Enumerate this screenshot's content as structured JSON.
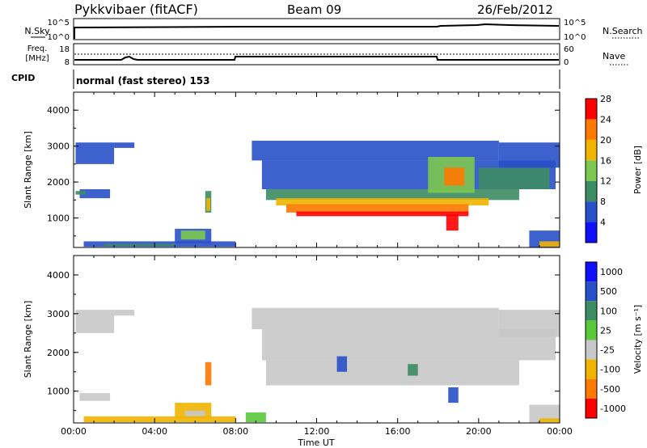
{
  "header": {
    "station": "Pykkvibaer (fitACF)",
    "beam": "Beam 09",
    "date": "26/Feb/2012"
  },
  "top_panels": {
    "nsky_label": "N.Sky",
    "nsky_ticks": [
      "10^5",
      "10^0"
    ],
    "nsearch_label": "N.Search",
    "nsearch_ticks": [
      "10^5",
      "10^0"
    ],
    "freq_label_1": "Freq.",
    "freq_label_2": "[MHz]",
    "freq_ticks": [
      "18",
      "8"
    ],
    "nave_label": "Nave",
    "nave_ticks": [
      "60",
      "0"
    ],
    "cpid_label": "CPID",
    "cpid_text": "normal (fast stereo) 153"
  },
  "x_axis": {
    "label": "Time UT",
    "ticks": [
      "00:00",
      "04:00",
      "08:00",
      "12:00",
      "16:00",
      "20:00",
      "00:00"
    ]
  },
  "chart_data": [
    {
      "type": "heatmap",
      "name": "power",
      "ylabel": "Slant Range [km]",
      "yticks": [
        "1000",
        "2000",
        "3000",
        "4000"
      ],
      "ylim": [
        180,
        4500
      ],
      "xlim": [
        0,
        24
      ],
      "colorbar_label": "Power [dB]",
      "colorbar_ticks": [
        "4",
        "8",
        "12",
        "16",
        "20",
        "24",
        "28"
      ],
      "colors": [
        "#1010ff",
        "#2850c8",
        "#3c8c64",
        "#7dc850",
        "#f0b400",
        "#ff7800",
        "#ff0000"
      ],
      "regions": [
        {
          "x0": 0.1,
          "x1": 2.0,
          "y0": 2500,
          "y1": 3100,
          "color": "#2850c8"
        },
        {
          "x0": 2.0,
          "x1": 3.0,
          "y0": 2950,
          "y1": 3100,
          "color": "#2850c8"
        },
        {
          "x0": 0.3,
          "x1": 1.8,
          "y0": 1550,
          "y1": 1800,
          "color": "#2850c8"
        },
        {
          "x0": 0.1,
          "x1": 0.6,
          "y0": 1650,
          "y1": 1750,
          "color": "#3c8c64"
        },
        {
          "x0": 5.0,
          "x1": 6.8,
          "y0": 300,
          "y1": 700,
          "color": "#2850c8"
        },
        {
          "x0": 5.3,
          "x1": 6.5,
          "y0": 400,
          "y1": 650,
          "color": "#7dc850"
        },
        {
          "x0": 6.5,
          "x1": 6.8,
          "y0": 1150,
          "y1": 1750,
          "color": "#3c8c64"
        },
        {
          "x0": 6.55,
          "x1": 6.75,
          "y0": 1200,
          "y1": 1550,
          "color": "#f0b400"
        },
        {
          "x0": 0.5,
          "x1": 8.0,
          "y0": 200,
          "y1": 350,
          "color": "#2850c8"
        },
        {
          "x0": 1.5,
          "x1": 5.0,
          "y0": 220,
          "y1": 280,
          "color": "#3c8c64"
        },
        {
          "x0": 8.8,
          "x1": 21.0,
          "y0": 2600,
          "y1": 3150,
          "color": "#2850c8"
        },
        {
          "x0": 9.3,
          "x1": 23.8,
          "y0": 1800,
          "y1": 2600,
          "color": "#2850c8"
        },
        {
          "x0": 9.5,
          "x1": 22.0,
          "y0": 1500,
          "y1": 1800,
          "color": "#3c8c64"
        },
        {
          "x0": 10.0,
          "x1": 20.5,
          "y0": 1350,
          "y1": 1550,
          "color": "#f0b400"
        },
        {
          "x0": 10.5,
          "x1": 19.5,
          "y0": 1150,
          "y1": 1380,
          "color": "#ff7800"
        },
        {
          "x0": 11.0,
          "x1": 19.5,
          "y0": 1050,
          "y1": 1180,
          "color": "#ff0000"
        },
        {
          "x0": 17.5,
          "x1": 19.8,
          "y0": 1700,
          "y1": 2700,
          "color": "#7dc850"
        },
        {
          "x0": 18.3,
          "x1": 19.3,
          "y0": 1900,
          "y1": 2400,
          "color": "#ff7800"
        },
        {
          "x0": 18.4,
          "x1": 19.0,
          "y0": 650,
          "y1": 1100,
          "color": "#ff0000"
        },
        {
          "x0": 20.0,
          "x1": 23.5,
          "y0": 1800,
          "y1": 2400,
          "color": "#3c8c64"
        },
        {
          "x0": 21.0,
          "x1": 24.0,
          "y0": 2400,
          "y1": 3100,
          "color": "#2850c8"
        },
        {
          "x0": 22.5,
          "x1": 24.0,
          "y0": 180,
          "y1": 650,
          "color": "#2850c8"
        },
        {
          "x0": 23.0,
          "x1": 24.0,
          "y0": 200,
          "y1": 350,
          "color": "#f0b400"
        }
      ]
    },
    {
      "type": "heatmap",
      "name": "velocity",
      "ylabel": "Slant Range [km]",
      "yticks": [
        "1000",
        "2000",
        "3000",
        "4000"
      ],
      "ylim": [
        180,
        4500
      ],
      "xlim": [
        0,
        24
      ],
      "colorbar_label": "Velocity [m s⁻¹]",
      "colorbar_ticks": [
        "1000",
        "500",
        "100",
        "25",
        "-25",
        "-100",
        "-500",
        "-1000"
      ],
      "colors": [
        "#1010ff",
        "#2850c8",
        "#3c8c64",
        "#5ac83c",
        "#c8c8c8",
        "#f0b400",
        "#ff7800",
        "#ff0000"
      ],
      "regions": [
        {
          "x0": 0.1,
          "x1": 2.0,
          "y0": 2500,
          "y1": 3100,
          "color": "#c8c8c8"
        },
        {
          "x0": 2.0,
          "x1": 3.0,
          "y0": 2950,
          "y1": 3100,
          "color": "#c8c8c8"
        },
        {
          "x0": 0.3,
          "x1": 1.8,
          "y0": 750,
          "y1": 950,
          "color": "#c8c8c8"
        },
        {
          "x0": 5.0,
          "x1": 6.8,
          "y0": 300,
          "y1": 700,
          "color": "#f0b400"
        },
        {
          "x0": 5.5,
          "x1": 6.5,
          "y0": 350,
          "y1": 500,
          "color": "#c8c8c8"
        },
        {
          "x0": 6.5,
          "x1": 6.8,
          "y0": 1150,
          "y1": 1750,
          "color": "#ff7800"
        },
        {
          "x0": 0.5,
          "x1": 8.0,
          "y0": 200,
          "y1": 350,
          "color": "#f0b400"
        },
        {
          "x0": 8.8,
          "x1": 21.0,
          "y0": 2600,
          "y1": 3150,
          "color": "#c8c8c8"
        },
        {
          "x0": 9.3,
          "x1": 23.8,
          "y0": 1800,
          "y1": 2600,
          "color": "#c8c8c8"
        },
        {
          "x0": 9.5,
          "x1": 22.0,
          "y0": 1150,
          "y1": 1800,
          "color": "#c8c8c8"
        },
        {
          "x0": 13.0,
          "x1": 13.5,
          "y0": 1500,
          "y1": 1900,
          "color": "#2850c8"
        },
        {
          "x0": 18.5,
          "x1": 19.0,
          "y0": 700,
          "y1": 1100,
          "color": "#2850c8"
        },
        {
          "x0": 16.5,
          "x1": 17.0,
          "y0": 1400,
          "y1": 1700,
          "color": "#3c8c64"
        },
        {
          "x0": 21.0,
          "x1": 24.0,
          "y0": 2400,
          "y1": 3100,
          "color": "#c8c8c8"
        },
        {
          "x0": 22.5,
          "x1": 24.0,
          "y0": 180,
          "y1": 650,
          "color": "#c8c8c8"
        },
        {
          "x0": 8.5,
          "x1": 9.5,
          "y0": 200,
          "y1": 450,
          "color": "#5ac83c"
        },
        {
          "x0": 23.0,
          "x1": 24.0,
          "y0": 200,
          "y1": 300,
          "color": "#f0b400"
        }
      ]
    }
  ]
}
